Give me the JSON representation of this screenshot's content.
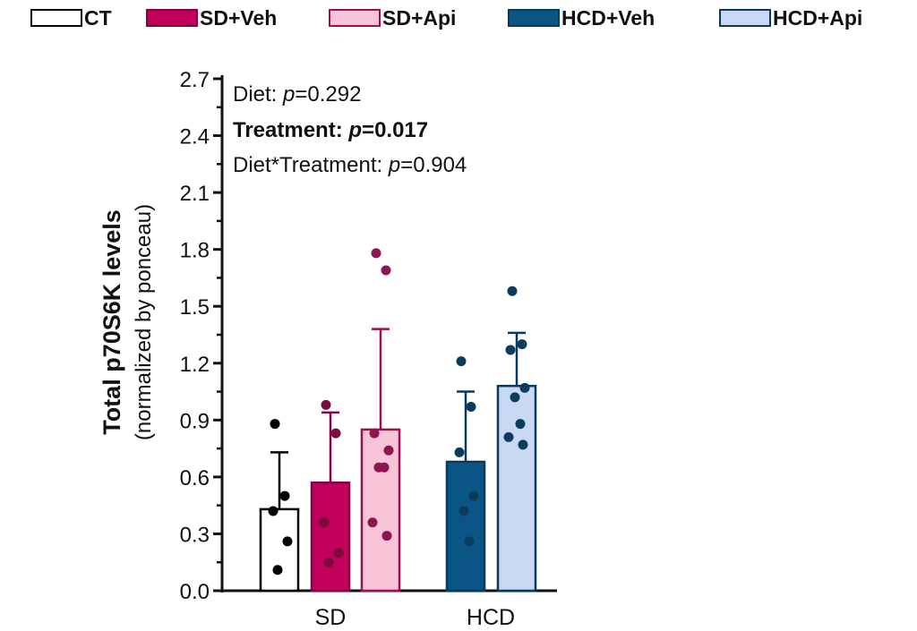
{
  "legend": [
    {
      "label": "CT",
      "fill": "#ffffff",
      "stroke": "#000000"
    },
    {
      "label": "SD+Veh",
      "fill": "#c0005a",
      "stroke": "#8a0044"
    },
    {
      "label": "SD+Api",
      "fill": "#f7c3d6",
      "stroke": "#9a1050"
    },
    {
      "label": "HCD+Veh",
      "fill": "#0a5585",
      "stroke": "#083a5c"
    },
    {
      "label": "HCD+Api",
      "fill": "#c9d9f3",
      "stroke": "#083a5c"
    }
  ],
  "stats": {
    "diet_label": "Diet: ",
    "diet_p_sym": "p",
    "diet_p_val": "=0.292",
    "treat_label": "Treatment: ",
    "treat_p_sym": "p",
    "treat_p_val": "=0.017",
    "inter_label": "Diet*Treatment: ",
    "inter_p_sym": "p",
    "inter_p_val": "=0.904"
  },
  "chart_data": {
    "type": "bar",
    "ylabel": "Total p70S6K levels",
    "ylabel_sub": "(normalized by ponceau)",
    "ylim": [
      0,
      2.7
    ],
    "yticks": [
      "0.0",
      "0.3",
      "0.6",
      "0.9",
      "1.2",
      "1.5",
      "1.8",
      "2.1",
      "2.4",
      "2.7"
    ],
    "groups": [
      "SD",
      "HCD"
    ],
    "bars": [
      {
        "series": "CT",
        "group": "SD",
        "mean": 0.43,
        "error": 0.3,
        "points": [
          0.88,
          0.5,
          0.42,
          0.26,
          0.11
        ],
        "fill": "#ffffff",
        "stroke": "#000000",
        "dot": "#000000"
      },
      {
        "series": "SD+Veh",
        "group": "SD",
        "mean": 0.57,
        "error": 0.37,
        "points": [
          0.98,
          0.83,
          0.36,
          0.2,
          0.15
        ],
        "fill": "#c0005a",
        "stroke": "#8a0044",
        "dot": "#7d0a3c"
      },
      {
        "series": "SD+Api",
        "group": "SD",
        "mean": 0.85,
        "error": 0.53,
        "points": [
          1.78,
          1.69,
          0.83,
          0.74,
          0.65,
          0.65,
          0.36,
          0.29
        ],
        "fill": "#f7c3d6",
        "stroke": "#9a1050",
        "dot": "#8f1452"
      },
      {
        "series": "HCD+Veh",
        "group": "HCD",
        "mean": 0.68,
        "error": 0.37,
        "points": [
          1.21,
          0.97,
          0.73,
          0.5,
          0.42,
          0.26
        ],
        "fill": "#0a5585",
        "stroke": "#083a5c",
        "dot": "#0c3c5c"
      },
      {
        "series": "HCD+Api",
        "group": "HCD",
        "mean": 1.08,
        "error": 0.28,
        "points": [
          1.58,
          1.3,
          1.27,
          1.07,
          1.02,
          0.88,
          0.81,
          0.77
        ],
        "fill": "#c9d9f3",
        "stroke": "#083a5c",
        "dot": "#0c3c5c"
      }
    ]
  }
}
